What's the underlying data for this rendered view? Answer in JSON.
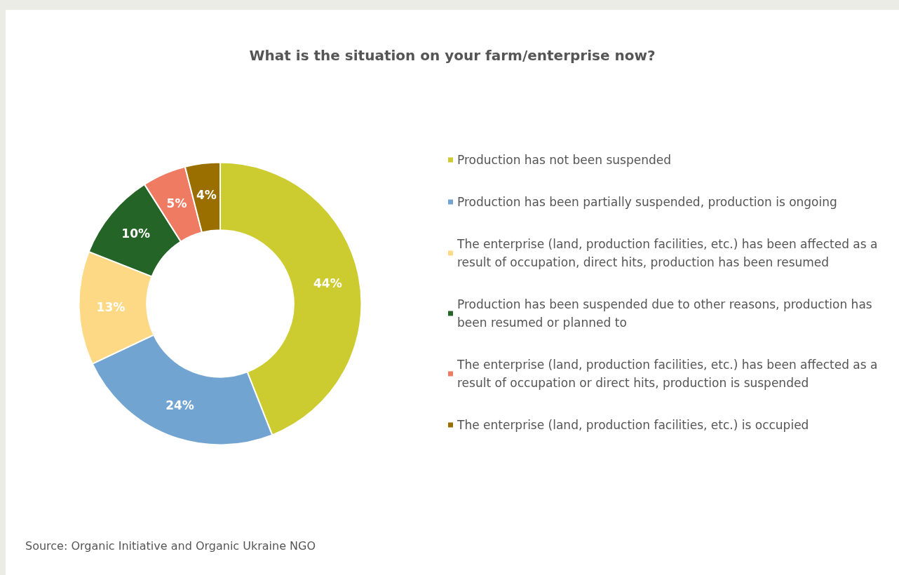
{
  "chart_data": {
    "type": "donut",
    "title": "What is the situation on your farm/enterprise now?",
    "categories": [
      "Production has not been suspended",
      "Production has been partially suspended, production is ongoing",
      "The enterprise (land, production facilities, etc.) has been affected as a result of occupation, direct hits, production has been resumed",
      "Production has been suspended due to other reasons, production has been resumed or planned to",
      "The enterprise (land, production facilities, etc.) has been affected as a result of occupation or direct hits, production is suspended",
      "The enterprise (land, production facilities, etc.) is occupied"
    ],
    "values": [
      44,
      24,
      13,
      10,
      5,
      4
    ],
    "value_labels": [
      "44%",
      "24%",
      "13%",
      "10%",
      "5%",
      "4%"
    ],
    "colors": [
      "#cccb2f",
      "#71a4d0",
      "#fdd985",
      "#256427",
      "#f07b63",
      "#9a6f00"
    ],
    "legend": "right",
    "annotations": [
      "Source: Organic Initiative and Organic Ukraine NGO"
    ]
  }
}
